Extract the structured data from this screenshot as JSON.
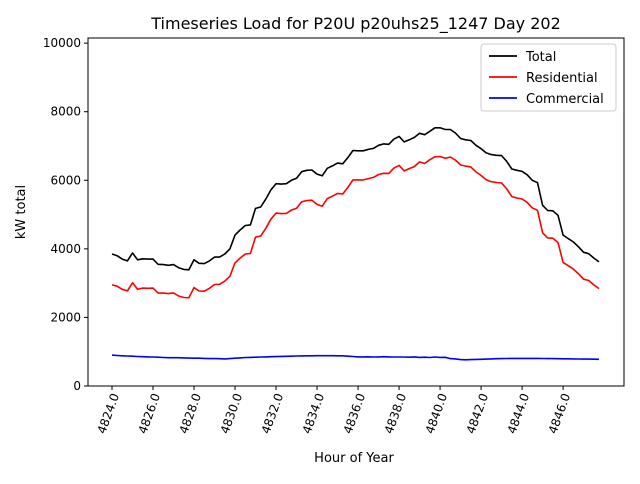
{
  "chart_data": {
    "type": "line",
    "title": "Timeseries Load for P20U p20uhs25_1247  Day 202",
    "xlabel": "Hour of Year",
    "ylabel": "kW total",
    "xlim": [
      4822.83,
      4848.97
    ],
    "ylim": [
      0,
      10150
    ],
    "x_start": 4824.0,
    "x_step": 0.25,
    "xticks": [
      4824,
      4826,
      4828,
      4830,
      4832,
      4834,
      4836,
      4838,
      4840,
      4842,
      4844,
      4846
    ],
    "xtick_labels": [
      "4824.0",
      "4826.0",
      "4828.0",
      "4830.0",
      "4832.0",
      "4834.0",
      "4836.0",
      "4838.0",
      "4840.0",
      "4842.0",
      "4844.0",
      "4846.0"
    ],
    "yticks": [
      0,
      2000,
      4000,
      6000,
      8000,
      10000
    ],
    "ytick_labels": [
      "0",
      "2000",
      "4000",
      "6000",
      "8000",
      "10000"
    ],
    "grid": false,
    "legend_position": "top-right",
    "series": [
      {
        "name": "Total",
        "color": "#000000",
        "values": [
          3850,
          3800,
          3700,
          3650,
          3880,
          3680,
          3710,
          3700,
          3700,
          3550,
          3540,
          3520,
          3540,
          3450,
          3400,
          3390,
          3680,
          3580,
          3570,
          3650,
          3760,
          3760,
          3850,
          4000,
          4400,
          4550,
          4680,
          4700,
          5180,
          5220,
          5450,
          5720,
          5900,
          5890,
          5900,
          6000,
          6060,
          6250,
          6290,
          6300,
          6180,
          6130,
          6350,
          6420,
          6500,
          6480,
          6660,
          6870,
          6860,
          6860,
          6900,
          6930,
          7020,
          7060,
          7050,
          7200,
          7280,
          7120,
          7180,
          7250,
          7370,
          7330,
          7430,
          7530,
          7530,
          7480,
          7480,
          7380,
          7220,
          7180,
          7160,
          7020,
          6920,
          6800,
          6750,
          6730,
          6720,
          6550,
          6330,
          6290,
          6260,
          6160,
          6000,
          5930,
          5270,
          5120,
          5110,
          4980,
          4400,
          4300,
          4200,
          4060,
          3900,
          3860,
          3730,
          3620
        ]
      },
      {
        "name": "Residential",
        "color": "#ff0000",
        "values": [
          2950,
          2910,
          2820,
          2775,
          3010,
          2820,
          2855,
          2850,
          2855,
          2710,
          2710,
          2695,
          2715,
          2625,
          2580,
          2575,
          2870,
          2770,
          2765,
          2850,
          2960,
          2965,
          3060,
          3200,
          3590,
          3730,
          3850,
          3865,
          4340,
          4375,
          4600,
          4865,
          5042,
          5028,
          5034,
          5130,
          5186,
          5372,
          5410,
          5418,
          5296,
          5245,
          5465,
          5536,
          5618,
          5600,
          5790,
          6010,
          6010,
          6012,
          6048,
          6085,
          6170,
          6205,
          6202,
          6355,
          6435,
          6274,
          6340,
          6402,
          6535,
          6490,
          6600,
          6685,
          6695,
          6642,
          6680,
          6590,
          6450,
          6415,
          6390,
          6245,
          6140,
          6015,
          5960,
          5935,
          5920,
          5748,
          5525,
          5484,
          5454,
          5354,
          5195,
          5126,
          4468,
          4320,
          4312,
          4184,
          3606,
          3508,
          3410,
          3272,
          3114,
          3076,
          2948,
          2840
        ]
      },
      {
        "name": "Commercial",
        "color": "#0000ff",
        "values": [
          900,
          890,
          880,
          875,
          870,
          860,
          855,
          850,
          845,
          840,
          830,
          825,
          825,
          825,
          820,
          815,
          810,
          810,
          805,
          800,
          800,
          795,
          790,
          800,
          810,
          820,
          830,
          835,
          840,
          845,
          850,
          855,
          858,
          862,
          866,
          870,
          874,
          878,
          880,
          882,
          884,
          885,
          885,
          884,
          882,
          880,
          870,
          860,
          850,
          848,
          852,
          845,
          850,
          855,
          848,
          845,
          845,
          846,
          840,
          848,
          835,
          840,
          830,
          845,
          835,
          838,
          800,
          790,
          770,
          765,
          770,
          775,
          780,
          785,
          790,
          795,
          800,
          802,
          805,
          806,
          806,
          806,
          805,
          804,
          802,
          800,
          798,
          796,
          794,
          792,
          790,
          788,
          786,
          784,
          782,
          780
        ]
      }
    ]
  }
}
